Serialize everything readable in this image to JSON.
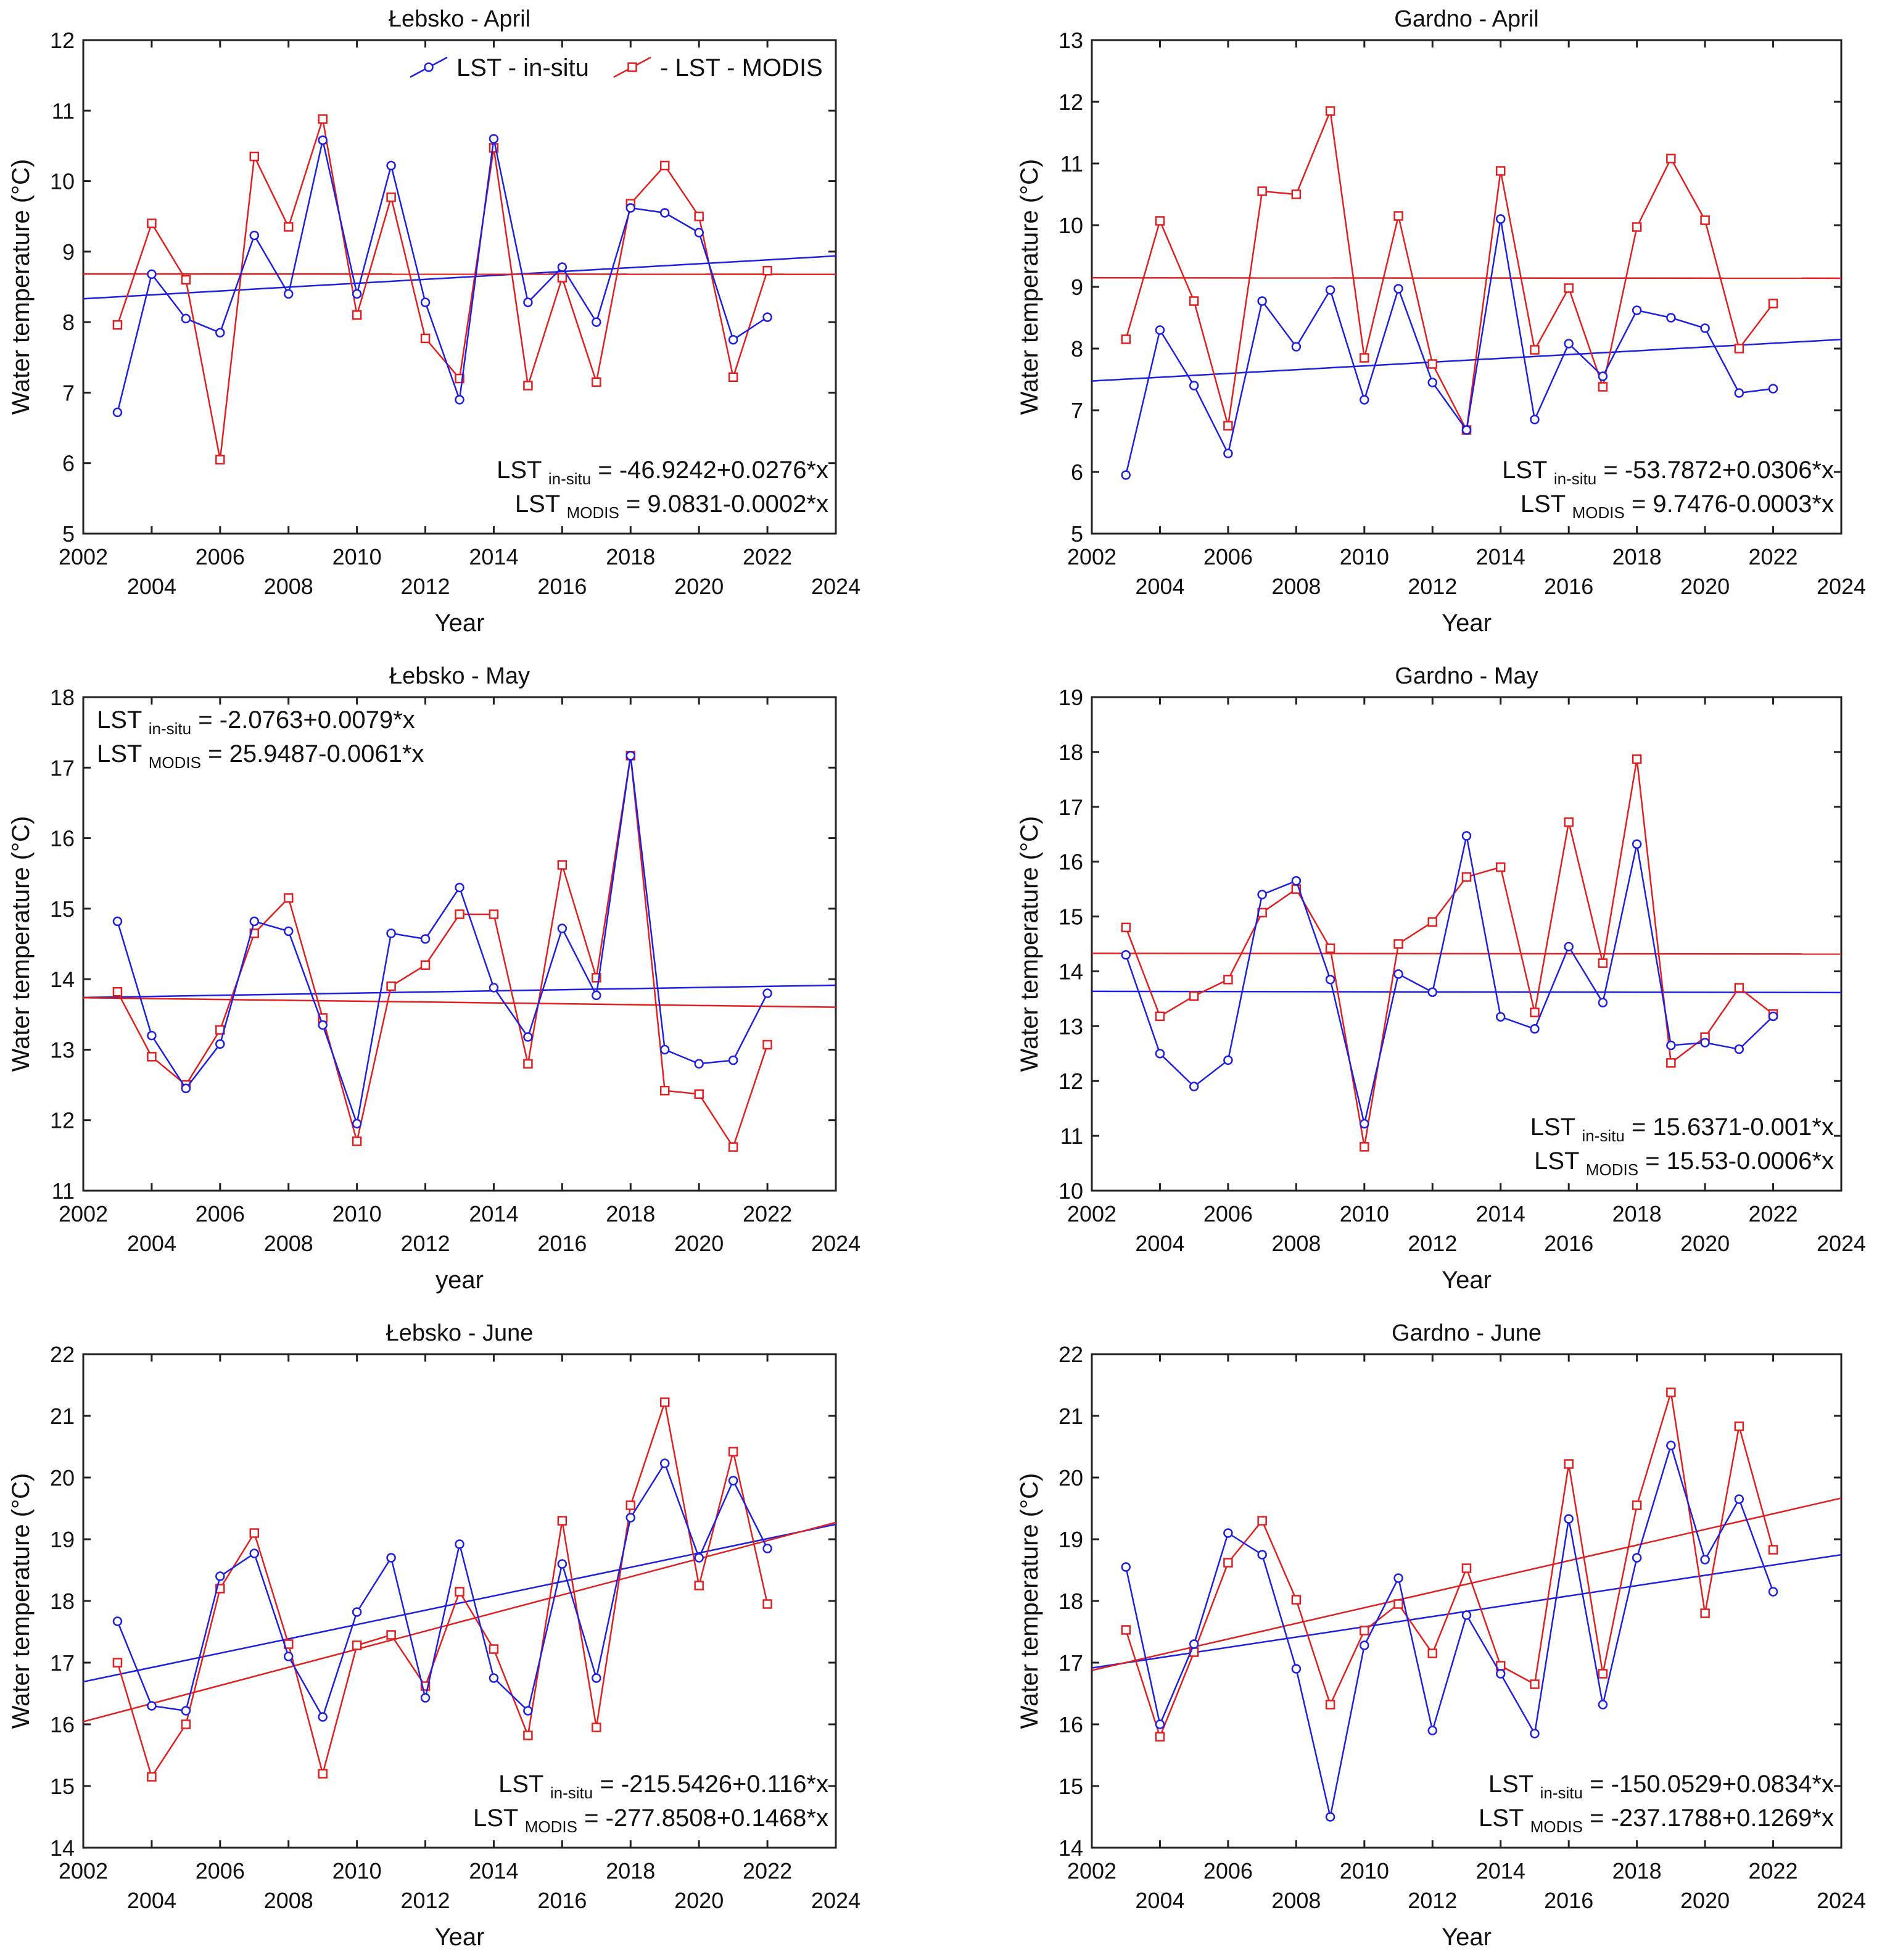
{
  "legend": {
    "insitu_label": "LST - in-situ",
    "modis_label": "- LST - MODIS",
    "insitu_color": "#1f1fe0",
    "modis_color": "#e02020"
  },
  "chart_data": [
    {
      "type": "line",
      "title": "Łebsko - April",
      "xlabel": "Year",
      "ylabel": "Water temperature (°C)",
      "xlim": [
        2002,
        2024
      ],
      "ylim": [
        5,
        12
      ],
      "xticks_top": [
        2002,
        2006,
        2010,
        2014,
        2018,
        2022
      ],
      "xticks_bottom": [
        2004,
        2008,
        2012,
        2016,
        2020,
        2024
      ],
      "yticks": [
        5,
        6,
        7,
        8,
        9,
        10,
        11,
        12
      ],
      "legend": "top-center",
      "x": [
        2003,
        2004,
        2005,
        2006,
        2007,
        2008,
        2009,
        2010,
        2011,
        2012,
        2013,
        2014,
        2015,
        2016,
        2017,
        2018,
        2019,
        2020,
        2021,
        2022
      ],
      "series": [
        {
          "name": "LST - in-situ",
          "values": [
            6.72,
            8.68,
            8.05,
            7.85,
            9.23,
            8.4,
            10.58,
            8.4,
            10.22,
            8.28,
            6.9,
            10.6,
            8.28,
            8.78,
            8.0,
            9.62,
            9.55,
            9.27,
            7.75,
            8.07
          ]
        },
        {
          "name": "LST - MODIS",
          "values": [
            7.96,
            9.4,
            8.6,
            6.05,
            10.35,
            9.35,
            10.88,
            8.1,
            9.77,
            7.77,
            7.2,
            10.47,
            7.1,
            8.63,
            7.15,
            9.68,
            10.22,
            9.5,
            7.22,
            8.73
          ]
        }
      ],
      "trend": [
        {
          "name": "in-situ",
          "intercept": -46.9242,
          "slope": 0.0276
        },
        {
          "name": "MODIS",
          "intercept": 9.0831,
          "slope": -0.0002
        }
      ],
      "equation_position": "bottom-right",
      "equations": [
        {
          "pre": "LST ",
          "sub": "in-situ",
          "post": " = -46.9242+0.0276*x"
        },
        {
          "pre": "LST ",
          "sub": "MODIS",
          "post": " = 9.0831-0.0002*x"
        }
      ]
    },
    {
      "type": "line",
      "title": "Gardno - April",
      "xlabel": "Year",
      "ylabel": "Water temperature (°C)",
      "xlim": [
        2002,
        2024
      ],
      "ylim": [
        5,
        13
      ],
      "xticks_top": [
        2002,
        2006,
        2010,
        2014,
        2018,
        2022
      ],
      "xticks_bottom": [
        2004,
        2008,
        2012,
        2016,
        2020,
        2024
      ],
      "yticks": [
        5,
        6,
        7,
        8,
        9,
        10,
        11,
        12,
        13
      ],
      "x": [
        2003,
        2004,
        2005,
        2006,
        2007,
        2008,
        2009,
        2010,
        2011,
        2012,
        2013,
        2014,
        2015,
        2016,
        2017,
        2018,
        2019,
        2020,
        2021,
        2022
      ],
      "series": [
        {
          "name": "LST - in-situ",
          "values": [
            5.95,
            8.3,
            7.4,
            6.3,
            8.77,
            8.03,
            8.95,
            7.17,
            8.97,
            7.45,
            6.68,
            10.1,
            6.85,
            8.08,
            7.55,
            8.62,
            8.5,
            8.33,
            7.28,
            7.35
          ]
        },
        {
          "name": "LST - MODIS",
          "values": [
            8.15,
            10.07,
            8.77,
            6.75,
            10.55,
            10.5,
            11.85,
            7.85,
            10.15,
            7.75,
            6.68,
            10.88,
            7.98,
            8.98,
            7.38,
            9.97,
            11.08,
            10.08,
            8.0,
            8.73
          ]
        }
      ],
      "trend": [
        {
          "name": "in-situ",
          "intercept": -53.7872,
          "slope": 0.0306
        },
        {
          "name": "MODIS",
          "intercept": 9.7476,
          "slope": -0.0003
        }
      ],
      "equation_position": "bottom-right",
      "equations": [
        {
          "pre": "LST ",
          "sub": "in-situ",
          "post": " = -53.7872+0.0306*x"
        },
        {
          "pre": "LST ",
          "sub": "MODIS",
          "post": " = 9.7476-0.0003*x"
        }
      ]
    },
    {
      "type": "line",
      "title": "Łebsko - May",
      "xlabel": "year",
      "ylabel": "Water temperature (°C)",
      "xlim": [
        2002,
        2024
      ],
      "ylim": [
        11,
        18
      ],
      "xticks_top": [
        2002,
        2006,
        2010,
        2014,
        2018,
        2022
      ],
      "xticks_bottom": [
        2004,
        2008,
        2012,
        2016,
        2020,
        2024
      ],
      "yticks": [
        11,
        12,
        13,
        14,
        15,
        16,
        17,
        18
      ],
      "x": [
        2003,
        2004,
        2005,
        2006,
        2007,
        2008,
        2009,
        2010,
        2011,
        2012,
        2013,
        2014,
        2015,
        2016,
        2017,
        2018,
        2019,
        2020,
        2021,
        2022
      ],
      "series": [
        {
          "name": "LST - in-situ",
          "values": [
            14.82,
            13.2,
            12.45,
            13.08,
            14.82,
            14.68,
            13.35,
            11.95,
            14.65,
            14.57,
            15.3,
            13.88,
            13.18,
            14.72,
            13.77,
            17.17,
            13.0,
            12.8,
            12.85,
            13.8
          ]
        },
        {
          "name": "LST - MODIS",
          "values": [
            13.82,
            12.9,
            12.5,
            13.28,
            14.65,
            15.15,
            13.45,
            11.7,
            13.9,
            14.2,
            14.92,
            14.92,
            12.8,
            15.62,
            14.02,
            17.17,
            12.42,
            12.37,
            11.62,
            13.07
          ]
        }
      ],
      "trend": [
        {
          "name": "in-situ",
          "intercept": -2.0763,
          "slope": 0.0079
        },
        {
          "name": "MODIS",
          "intercept": 25.9487,
          "slope": -0.0061
        }
      ],
      "equation_position": "top-left",
      "equations": [
        {
          "pre": "LST ",
          "sub": "in-situ",
          "post": " = -2.0763+0.0079*x"
        },
        {
          "pre": "LST ",
          "sub": "MODIS",
          "post": " = 25.9487-0.0061*x"
        }
      ]
    },
    {
      "type": "line",
      "title": "Gardno - May",
      "xlabel": "Year",
      "ylabel": "Water temperature (°C)",
      "xlim": [
        2002,
        2024
      ],
      "ylim": [
        10,
        19
      ],
      "xticks_top": [
        2002,
        2006,
        2010,
        2014,
        2018,
        2022
      ],
      "xticks_bottom": [
        2004,
        2008,
        2012,
        2016,
        2020,
        2024
      ],
      "yticks": [
        10,
        11,
        12,
        13,
        14,
        15,
        16,
        17,
        18,
        19
      ],
      "x": [
        2003,
        2004,
        2005,
        2006,
        2007,
        2008,
        2009,
        2010,
        2011,
        2012,
        2013,
        2014,
        2015,
        2016,
        2017,
        2018,
        2019,
        2020,
        2021,
        2022
      ],
      "series": [
        {
          "name": "LST - in-situ",
          "values": [
            14.3,
            12.5,
            11.9,
            12.38,
            15.4,
            15.65,
            13.85,
            11.22,
            13.95,
            13.62,
            16.47,
            13.17,
            12.95,
            14.45,
            13.43,
            16.32,
            12.65,
            12.7,
            12.58,
            13.18
          ]
        },
        {
          "name": "LST - MODIS",
          "values": [
            14.8,
            13.18,
            13.55,
            13.85,
            15.07,
            15.5,
            14.42,
            10.8,
            14.5,
            14.9,
            15.72,
            15.9,
            13.25,
            16.72,
            14.15,
            17.87,
            12.33,
            12.8,
            13.7,
            13.22
          ]
        }
      ],
      "trend": [
        {
          "name": "in-situ",
          "intercept": 15.6371,
          "slope": -0.001
        },
        {
          "name": "MODIS",
          "intercept": 15.53,
          "slope": -0.0006
        }
      ],
      "equation_position": "bottom-right",
      "equations": [
        {
          "pre": "LST ",
          "sub": "in-situ",
          "post": " = 15.6371-0.001*x"
        },
        {
          "pre": "LST ",
          "sub": "MODIS",
          "post": " = 15.53-0.0006*x"
        }
      ]
    },
    {
      "type": "line",
      "title": "Łebsko - June",
      "xlabel": "Year",
      "ylabel": "Water temperature (°C)",
      "xlim": [
        2002,
        2024
      ],
      "ylim": [
        14,
        22
      ],
      "xticks_top": [
        2002,
        2006,
        2010,
        2014,
        2018,
        2022
      ],
      "xticks_bottom": [
        2004,
        2008,
        2012,
        2016,
        2020,
        2024
      ],
      "yticks": [
        14,
        15,
        16,
        17,
        18,
        19,
        20,
        21,
        22
      ],
      "x": [
        2003,
        2004,
        2005,
        2006,
        2007,
        2008,
        2009,
        2010,
        2011,
        2012,
        2013,
        2014,
        2015,
        2016,
        2017,
        2018,
        2019,
        2020,
        2021,
        2022
      ],
      "series": [
        {
          "name": "LST - in-situ",
          "values": [
            17.67,
            16.3,
            16.22,
            18.4,
            18.77,
            17.1,
            16.12,
            17.82,
            18.7,
            16.43,
            18.92,
            16.75,
            16.22,
            18.6,
            16.75,
            19.35,
            20.23,
            18.7,
            19.95,
            18.85
          ]
        },
        {
          "name": "LST - MODIS",
          "values": [
            17.0,
            15.15,
            16.0,
            18.2,
            19.1,
            17.3,
            15.2,
            17.28,
            17.45,
            16.62,
            18.15,
            17.22,
            15.82,
            19.3,
            15.95,
            19.55,
            21.22,
            18.25,
            20.42,
            17.95
          ]
        }
      ],
      "trend": [
        {
          "name": "in-situ",
          "intercept": -215.5426,
          "slope": 0.116
        },
        {
          "name": "MODIS",
          "intercept": -277.8508,
          "slope": 0.1468
        }
      ],
      "equation_position": "bottom-right",
      "equations": [
        {
          "pre": "LST ",
          "sub": "in-situ",
          "post": " = -215.5426+0.116*x"
        },
        {
          "pre": "LST ",
          "sub": "MODIS",
          "post": " = -277.8508+0.1468*x"
        }
      ]
    },
    {
      "type": "line",
      "title": "Gardno - June",
      "xlabel": "Year",
      "ylabel": "Water temperature (°C)",
      "xlim": [
        2002,
        2024
      ],
      "ylim": [
        14,
        22
      ],
      "xticks_top": [
        2002,
        2006,
        2010,
        2014,
        2018,
        2022
      ],
      "xticks_bottom": [
        2004,
        2008,
        2012,
        2016,
        2020,
        2024
      ],
      "yticks": [
        14,
        15,
        16,
        17,
        18,
        19,
        20,
        21,
        22
      ],
      "x": [
        2003,
        2004,
        2005,
        2006,
        2007,
        2008,
        2009,
        2010,
        2011,
        2012,
        2013,
        2014,
        2015,
        2016,
        2017,
        2018,
        2019,
        2020,
        2021,
        2022
      ],
      "series": [
        {
          "name": "LST - in-situ",
          "values": [
            18.55,
            16.0,
            17.3,
            19.1,
            18.75,
            16.9,
            14.5,
            17.28,
            18.37,
            15.9,
            17.77,
            16.82,
            15.85,
            19.33,
            16.32,
            18.7,
            20.52,
            18.67,
            19.65,
            18.15
          ]
        },
        {
          "name": "LST - MODIS",
          "values": [
            17.53,
            15.8,
            17.17,
            18.62,
            19.3,
            18.02,
            16.32,
            17.52,
            17.95,
            17.15,
            18.53,
            16.95,
            16.65,
            20.22,
            16.82,
            19.55,
            21.38,
            17.8,
            20.83,
            18.83
          ]
        }
      ],
      "trend": [
        {
          "name": "in-situ",
          "intercept": -150.0529,
          "slope": 0.0834
        },
        {
          "name": "MODIS",
          "intercept": -237.1788,
          "slope": 0.1269
        }
      ],
      "equation_position": "bottom-right",
      "equations": [
        {
          "pre": "LST ",
          "sub": "in-situ",
          "post": " = -150.0529+0.0834*x"
        },
        {
          "pre": "LST ",
          "sub": "MODIS",
          "post": " = -237.1788+0.1269*x"
        }
      ]
    }
  ]
}
